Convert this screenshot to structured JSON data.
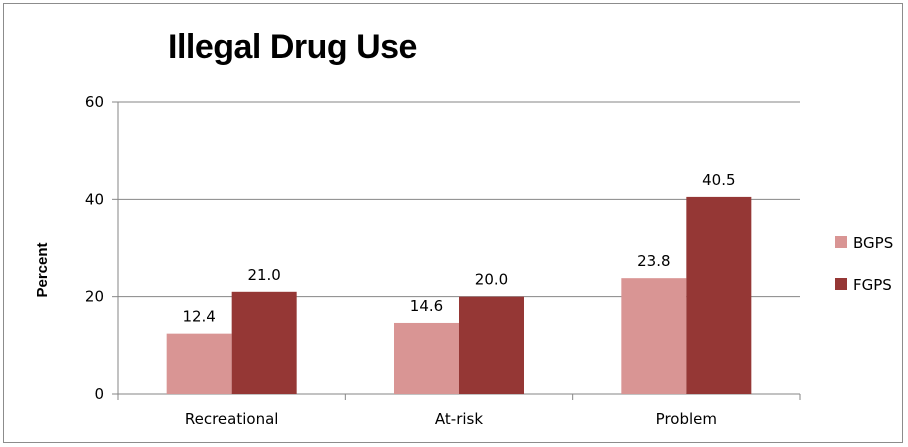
{
  "chart_data": {
    "type": "bar",
    "title": "Illegal Drug Use",
    "xlabel": "",
    "ylabel": "Percent",
    "ylim": [
      0,
      60
    ],
    "yticks": [
      0,
      20,
      40,
      60
    ],
    "grid": true,
    "legend_position": "right",
    "categories": [
      "Recreational",
      "At-risk",
      "Problem"
    ],
    "series": [
      {
        "name": "BGPS",
        "color": "#d99594",
        "values": [
          12.4,
          14.6,
          23.8
        ],
        "labels": [
          "12.4",
          "14.6",
          "23.8"
        ]
      },
      {
        "name": "FGPS",
        "color": "#953735",
        "values": [
          21.0,
          20.0,
          40.5
        ],
        "labels": [
          "21.0",
          "20.0",
          "40.5"
        ]
      }
    ]
  }
}
